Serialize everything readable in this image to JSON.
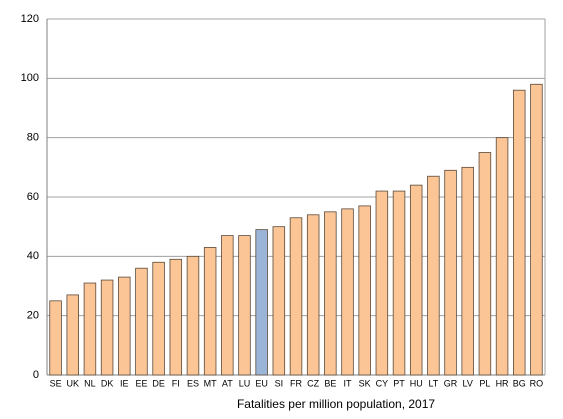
{
  "chart_data": {
    "type": "bar",
    "xlabel": "Fatalities per million population, 2017",
    "categories": [
      "SE",
      "UK",
      "NL",
      "DK",
      "IE",
      "EE",
      "DE",
      "FI",
      "ES",
      "MT",
      "AT",
      "LU",
      "EU",
      "SI",
      "FR",
      "CZ",
      "BE",
      "IT",
      "SK",
      "CY",
      "PT",
      "HU",
      "LT",
      "GR",
      "LV",
      "PL",
      "HR",
      "BG",
      "RO"
    ],
    "values": [
      25,
      27,
      31,
      32,
      33,
      36,
      38,
      39,
      40,
      43,
      47,
      47,
      49,
      50,
      53,
      54,
      55,
      56,
      57,
      62,
      62,
      64,
      67,
      69,
      70,
      75,
      80,
      96,
      98
    ],
    "colors": [
      "#fcc596",
      "#fcc596",
      "#fcc596",
      "#fcc596",
      "#fcc596",
      "#fcc596",
      "#fcc596",
      "#fcc596",
      "#fcc596",
      "#fcc596",
      "#fcc596",
      "#fcc596",
      "#9ab5d8",
      "#fcc596",
      "#fcc596",
      "#fcc596",
      "#fcc596",
      "#fcc596",
      "#fcc596",
      "#fcc596",
      "#fcc596",
      "#fcc596",
      "#fcc596",
      "#fcc596",
      "#fcc596",
      "#fcc596",
      "#fcc596",
      "#fcc596",
      "#fcc596"
    ],
    "ylim": [
      0,
      120
    ],
    "yticks": [
      0,
      20,
      40,
      60,
      80,
      100,
      120
    ],
    "grid": true
  }
}
